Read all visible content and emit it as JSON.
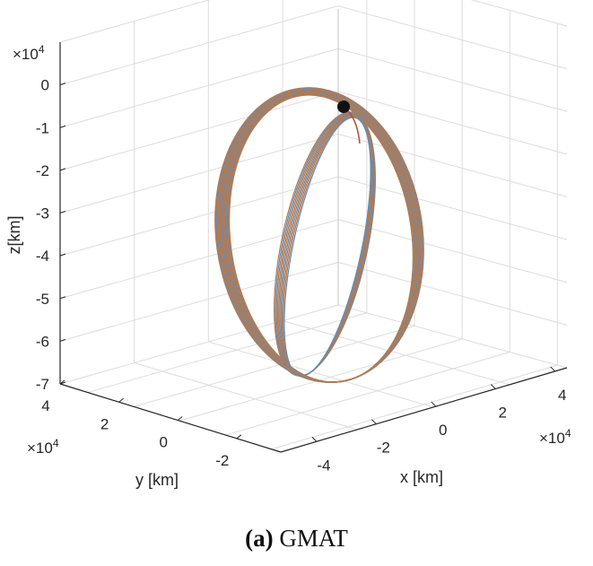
{
  "caption": {
    "label": "(a)",
    "title": "GMAT"
  },
  "chart_data": {
    "type": "line3d",
    "zlabel": "z[km]",
    "xlabel": "x [km]",
    "ylabel": "y [km]",
    "z_exponent": "×10",
    "z_exponent_power": "4",
    "x_exponent": "×10",
    "x_exponent_power": "4",
    "y_exponent": "×10",
    "y_exponent_power": "4",
    "z_ticks": [
      "0",
      "-1",
      "-2",
      "-3",
      "-4",
      "-5",
      "-6",
      "-7"
    ],
    "z_tick_values": [
      0,
      -1,
      -2,
      -3,
      -4,
      -5,
      -6,
      -7
    ],
    "x_ticks": [
      "-4",
      "-2",
      "0",
      "2",
      "4"
    ],
    "x_tick_values": [
      -4,
      -2,
      0,
      2,
      4
    ],
    "y_ticks": [
      "4",
      "2",
      "0",
      "-2"
    ],
    "y_tick_values": [
      4,
      2,
      0,
      -2
    ],
    "zlim": [
      -7,
      1
    ],
    "grid": true,
    "orbit_color": "#b07b55",
    "orbit_highlight": "#5a8fc4",
    "marker_color": "#111111"
  }
}
